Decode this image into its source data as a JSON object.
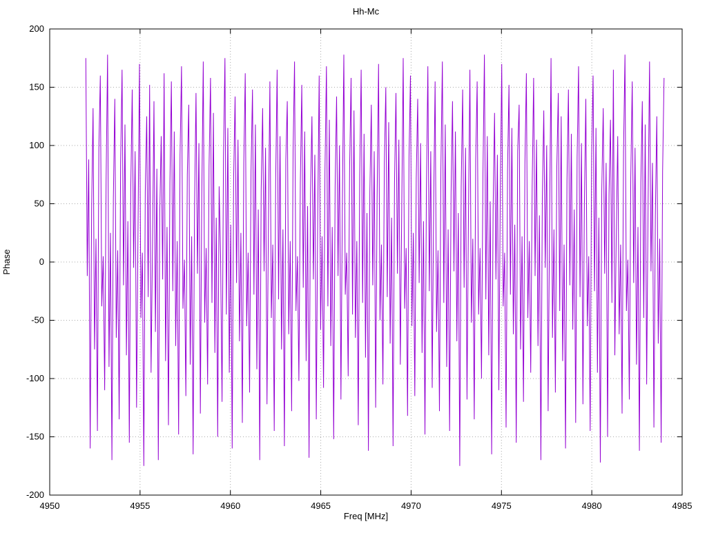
{
  "page": {
    "background": "#ffffff"
  },
  "chart_data": {
    "type": "line",
    "title": "Hh-Mc",
    "xlabel": "Freq [MHz]",
    "ylabel": "Phase",
    "xlim": [
      4950,
      4985
    ],
    "ylim": [
      -200,
      200
    ],
    "x_ticks": [
      4950,
      4955,
      4960,
      4965,
      4970,
      4975,
      4980,
      4985
    ],
    "y_ticks": [
      -200,
      -150,
      -100,
      -50,
      0,
      50,
      100,
      150,
      200
    ],
    "grid": true,
    "legend_position": "none",
    "line_color": "#9400d3",
    "grid_color": "#a8a8a8",
    "border_color": "#000000",
    "x_start": 4952,
    "x_end": 4984,
    "values": [
      175,
      -12,
      88,
      -160,
      45,
      132,
      -75,
      20,
      -145,
      98,
      160,
      -38,
      5,
      -110,
      70,
      178,
      -90,
      25,
      -170,
      55,
      140,
      -65,
      10,
      -135,
      85,
      165,
      -20,
      118,
      -80,
      35,
      -155,
      62,
      148,
      -5,
      95,
      -125,
      28,
      170,
      -48,
      8,
      -175,
      60,
      125,
      -30,
      152,
      -95,
      15,
      138,
      -60,
      80,
      -170,
      42,
      108,
      -15,
      162,
      -85,
      30,
      -140,
      68,
      155,
      -25,
      112,
      -72,
      18,
      -148,
      92,
      168,
      -40,
      2,
      -115,
      75,
      135,
      -88,
      22,
      -165,
      50,
      145,
      -10,
      102,
      -130,
      58,
      172,
      -52,
      12,
      -105,
      82,
      158,
      -35,
      128,
      -78,
      38,
      -150,
      65,
      5,
      -120,
      90,
      175,
      -45,
      115,
      -95,
      32,
      -160,
      72,
      142,
      -18,
      105,
      -68,
      25,
      -138,
      85,
      162,
      -55,
      8,
      -112,
      78,
      148,
      -28,
      118,
      -92,
      45,
      -170,
      62,
      132,
      -8,
      98,
      -122,
      35,
      155,
      -48,
      15,
      -145,
      70,
      165,
      -32,
      108,
      -75,
      28,
      -158,
      88,
      138,
      -62,
      18,
      -128,
      95,
      172,
      -42,
      5,
      -102,
      68,
      152,
      -22,
      112,
      -85,
      48,
      -168,
      58,
      125,
      -15,
      92,
      -135,
      40,
      160,
      -58,
      22,
      -108,
      78,
      168,
      -38,
      122,
      -72,
      30,
      -152,
      65,
      142,
      -12,
      100,
      -118,
      52,
      178,
      -28,
      8,
      -98,
      82,
      158,
      -45,
      130,
      -65,
      18,
      -140,
      75,
      165,
      -35,
      110,
      -82,
      42,
      -162,
      60,
      135,
      -20,
      95,
      -125,
      55,
      170,
      -50,
      15,
      -105,
      85,
      150,
      -30,
      120,
      -70,
      38,
      -158,
      68,
      145,
      -10,
      105,
      -88,
      48,
      175,
      -40,
      12,
      -132,
      90,
      160,
      -55,
      25,
      -115,
      72,
      140,
      -18,
      102,
      -78,
      35,
      -148,
      62,
      168,
      -25,
      95,
      -108,
      50,
      155,
      -60,
      10,
      -128,
      80,
      172,
      -35,
      118,
      -90,
      28,
      -145,
      58,
      138,
      -8,
      112,
      -68,
      42,
      -175,
      65,
      148,
      -22,
      98,
      -118,
      38,
      165,
      -52,
      20,
      -135,
      88,
      155,
      -45,
      12,
      -100,
      75,
      178,
      -32,
      108,
      -80,
      52,
      -165,
      45,
      128,
      -15,
      92,
      -110,
      58,
      170,
      -38,
      8,
      -142,
      78,
      152,
      -28,
      115,
      -62,
      32,
      -155,
      95,
      135,
      -75,
      22,
      -120,
      85,
      162,
      -48,
      18,
      -95,
      65,
      158,
      -12,
      105,
      -72,
      40,
      -170,
      55,
      130,
      -5,
      100,
      -128,
      35,
      175,
      -65,
      28,
      -112,
      82,
      145,
      -42,
      125,
      -85,
      15,
      -160,
      70,
      148,
      -20,
      110,
      -58,
      45,
      -138,
      90,
      168,
      -30,
      102,
      -122,
      48,
      140,
      -55,
      5,
      -145,
      92,
      160,
      -25,
      115,
      -95,
      38,
      -172,
      62,
      132,
      -10,
      85,
      -150,
      58,
      122,
      -35,
      165,
      -80,
      25,
      108,
      -62,
      15,
      -130,
      95,
      178,
      -42,
      2,
      -118,
      72,
      155,
      -18,
      98,
      -88,
      30,
      -162,
      68,
      138,
      -48,
      118,
      -105,
      52,
      172,
      -8,
      85,
      -142,
      40,
      125,
      -70,
      20,
      -155,
      78,
      158
    ]
  }
}
